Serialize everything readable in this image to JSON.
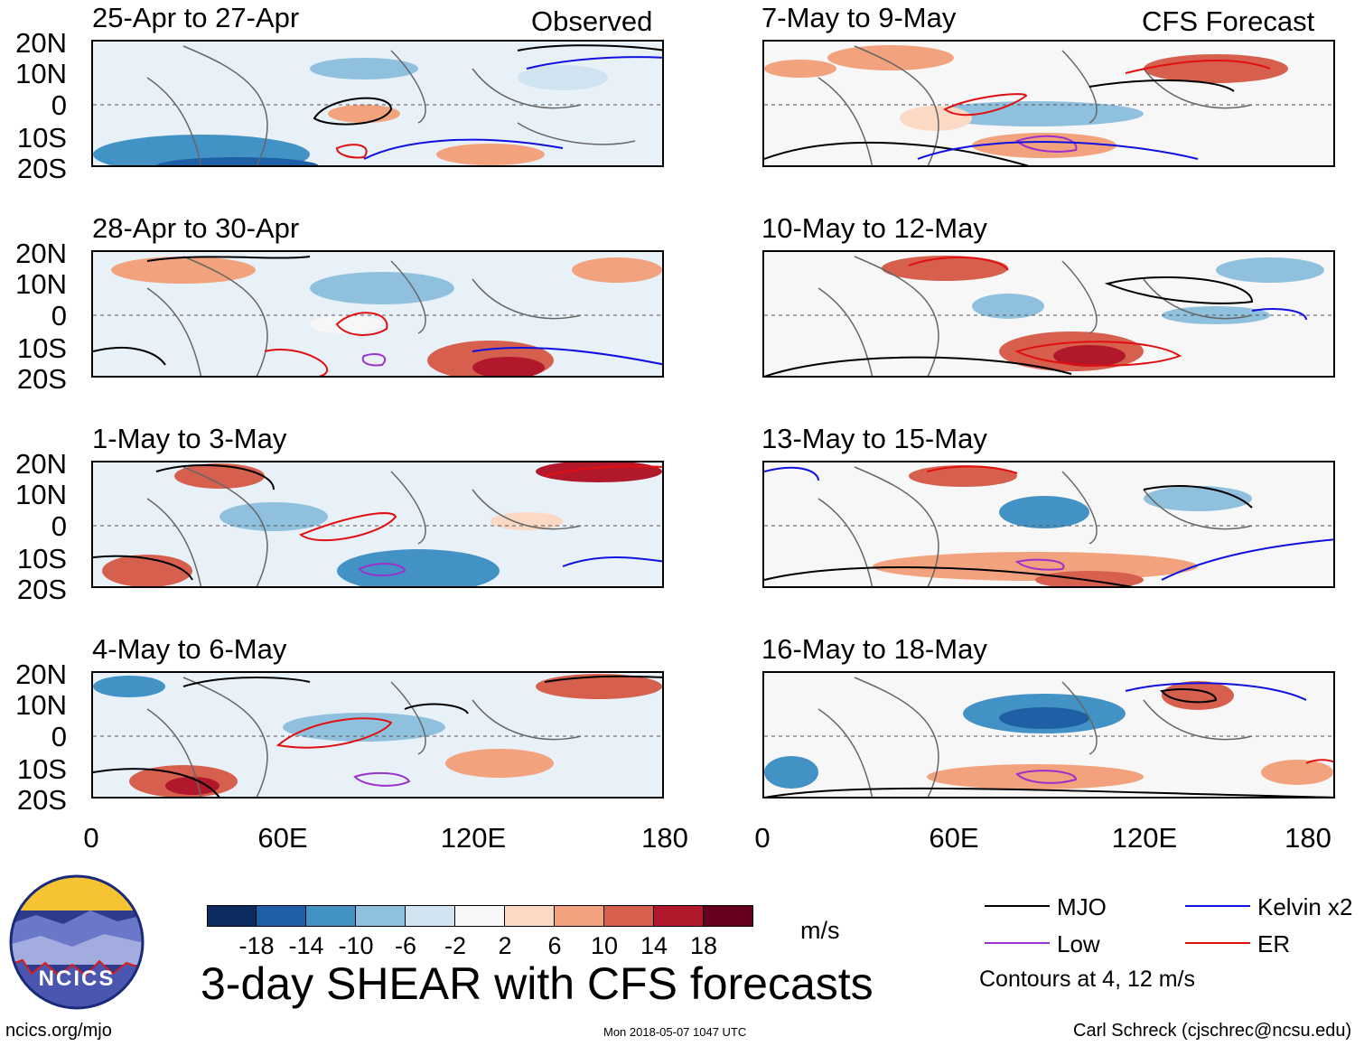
{
  "header": {
    "observed_label": "Observed",
    "forecast_label": "CFS Forecast"
  },
  "panels_left": [
    {
      "title": "25-Apr to 27-Apr"
    },
    {
      "title": "28-Apr to 30-Apr"
    },
    {
      "title": "1-May to 3-May"
    },
    {
      "title": "4-May to 6-May"
    }
  ],
  "panels_right": [
    {
      "title": "7-May to 9-May"
    },
    {
      "title": "10-May to 12-May"
    },
    {
      "title": "13-May to 15-May"
    },
    {
      "title": "16-May to 18-May"
    }
  ],
  "axes": {
    "lat_ticks": [
      "20N",
      "10N",
      "0",
      "10S",
      "20S"
    ],
    "lon_ticks": [
      "0",
      "60E",
      "120E",
      "180"
    ]
  },
  "colorbar": {
    "labels": [
      "-18",
      "-14",
      "-10",
      "-6",
      "-2",
      "2",
      "6",
      "10",
      "14",
      "18"
    ],
    "colors": [
      "#0d2b5e",
      "#1f5fa6",
      "#4292c6",
      "#8fc1df",
      "#cfe3f1",
      "#f7f7f7",
      "#fcd9c4",
      "#f2a27c",
      "#d6604d",
      "#b2182b",
      "#67001f"
    ],
    "units": "m/s"
  },
  "title": "3-day SHEAR with CFS forecasts",
  "legend": {
    "items": [
      {
        "label": "MJO",
        "color": "#000000"
      },
      {
        "label": "Kelvin x2",
        "color": "#1010e0"
      },
      {
        "label": "Low",
        "color": "#9932cc"
      },
      {
        "label": "ER",
        "color": "#e01010"
      }
    ],
    "note": "Contours at 4, 12 m/s"
  },
  "logo": {
    "text": "NCICS"
  },
  "footer": {
    "url": "ncics.org/mjo",
    "timestamp": "Mon 2018-05-07 1047 UTC",
    "credit": "Carl Schreck (cjschrec@ncsu.edu)"
  }
}
